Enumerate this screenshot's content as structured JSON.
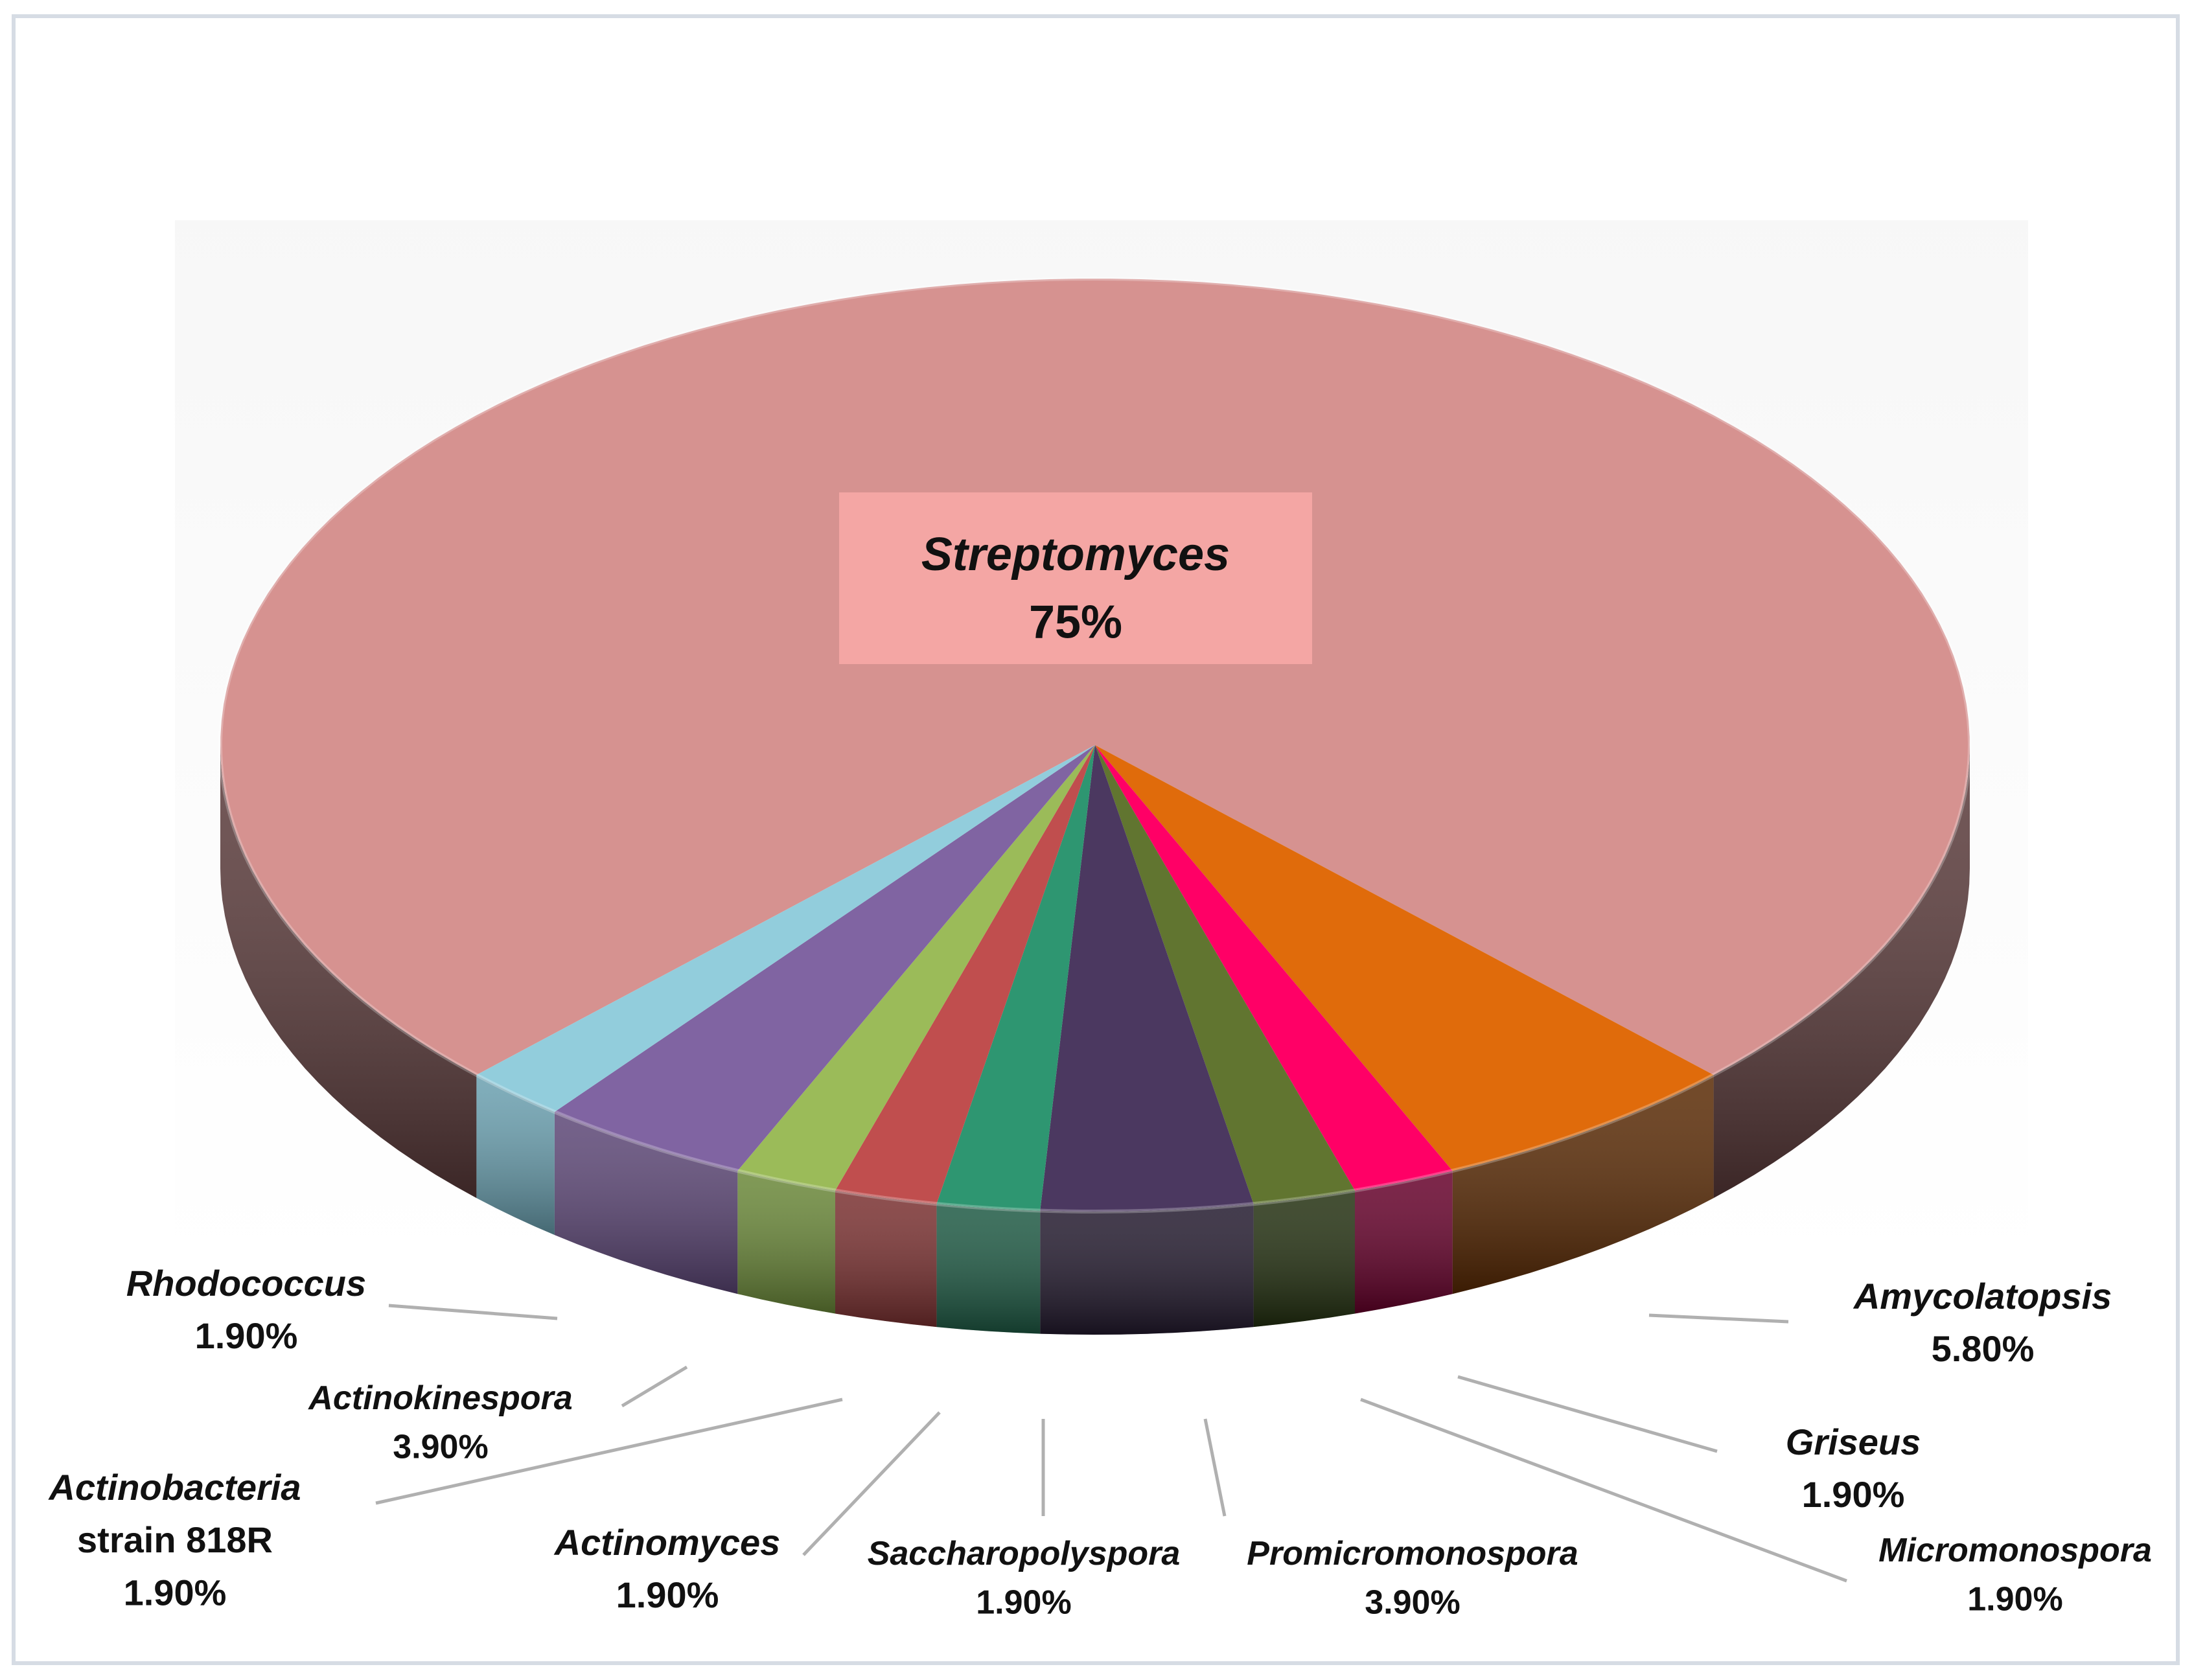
{
  "chart_data": {
    "type": "pie",
    "style": "3d",
    "slices": [
      {
        "label": "Streptomyces",
        "value": 75,
        "value_label": "75%",
        "color": "#d69290",
        "dark": "#5a3a3a",
        "light": "#f4a6a4",
        "font_size": 72
      },
      {
        "label": "Amycolatopsis",
        "value": 5.8,
        "value_label": "5.80%",
        "color": "#e06b0b",
        "dark": "#5a2a04",
        "font_size": 56
      },
      {
        "label": "Griseus",
        "value": 1.9,
        "value_label": "1.90%",
        "color": "#ff0066",
        "dark": "#66002a",
        "font_size": 56
      },
      {
        "label": "Micromonospora",
        "value": 1.9,
        "value_label": "1.90%",
        "color": "#617530",
        "dark": "#233010",
        "font_size": 52
      },
      {
        "label": "Promicromonospora",
        "value": 3.9,
        "value_label": "3.90%",
        "color": "#4b3860",
        "dark": "#231a2e",
        "font_size": 52
      },
      {
        "label": "Saccharopolyspora",
        "value": 1.9,
        "value_label": "1.90%",
        "color": "#2e9671",
        "dark": "#1e5a44",
        "font_size": 52
      },
      {
        "label": "Actinomyces",
        "value": 1.9,
        "value_label": "1.90%",
        "color": "#c04e4e",
        "dark": "#7a3030",
        "font_size": 56
      },
      {
        "label": "Actinobacteria",
        "label_line2": "strain 818R",
        "value": 1.9,
        "value_label": "1.90%",
        "color": "#9bbb59",
        "dark": "#6a8838",
        "font_size": 56
      },
      {
        "label": "Actinokinespora",
        "value": 3.9,
        "value_label": "3.90%",
        "color": "#8064a2",
        "dark": "#5c4676",
        "font_size": 52
      },
      {
        "label": "Rhodococcus",
        "value": 1.9,
        "value_label": "1.90%",
        "color": "#92cddc",
        "dark": "#6aa0b0",
        "font_size": 56
      }
    ]
  }
}
